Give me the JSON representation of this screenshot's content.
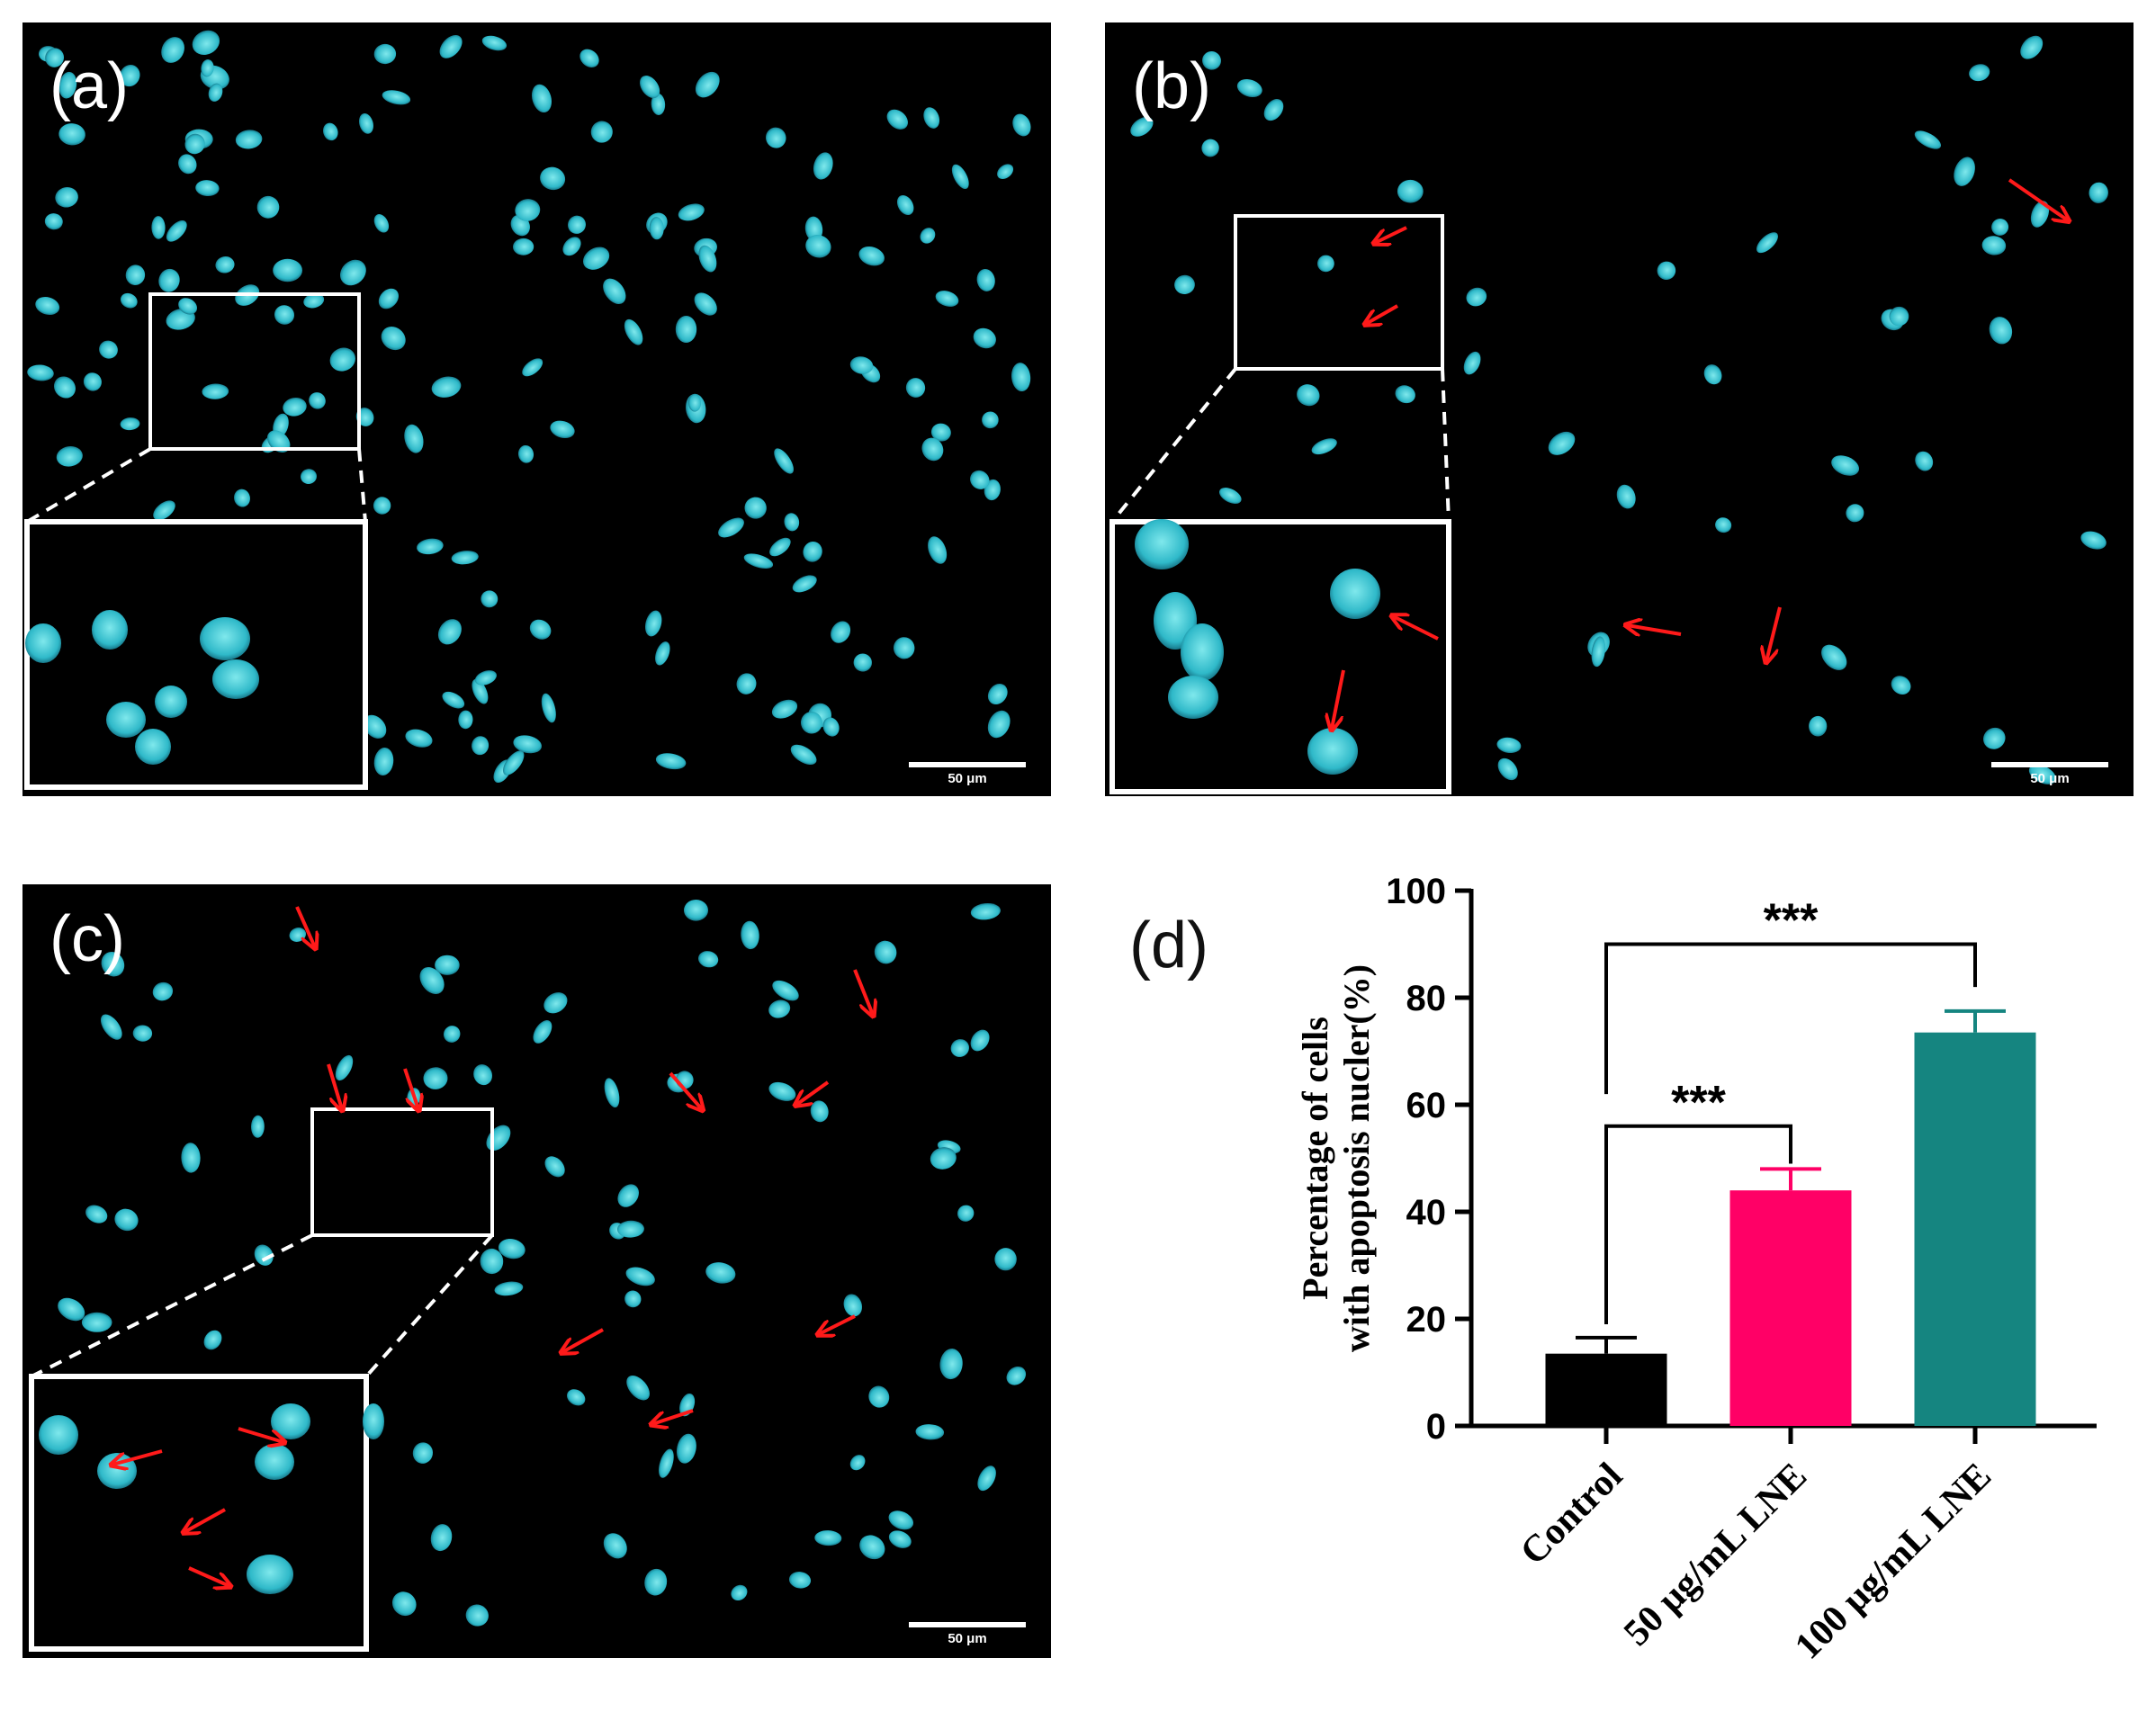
{
  "panels": [
    {
      "label": "(a)",
      "scale": "50 μm"
    },
    {
      "label": "(b)",
      "scale": "50 μm"
    },
    {
      "label": "(c)",
      "scale": "50 μm"
    }
  ],
  "chart_data": {
    "label": "(d)",
    "type": "bar",
    "categories": [
      "Control",
      "50 μg/mL LNE",
      "100 μg/mL LNE"
    ],
    "values": [
      13.5,
      44,
      73.5
    ],
    "errors": [
      3,
      4,
      4
    ],
    "colors": [
      "#000000",
      "#ff0066",
      "#158580"
    ],
    "ylabel_line1": "Percentage of cells",
    "ylabel_line2": "with apoptosis nucler(%)",
    "ylim": [
      0,
      100
    ],
    "yticks": [
      "0",
      "20",
      "40",
      "60",
      "80",
      "100"
    ],
    "significance": [
      {
        "from": "Control",
        "to": "50 μg/mL LNE",
        "text": "***"
      },
      {
        "from": "Control",
        "to": "100 μg/mL LNE",
        "text": "***"
      }
    ]
  }
}
